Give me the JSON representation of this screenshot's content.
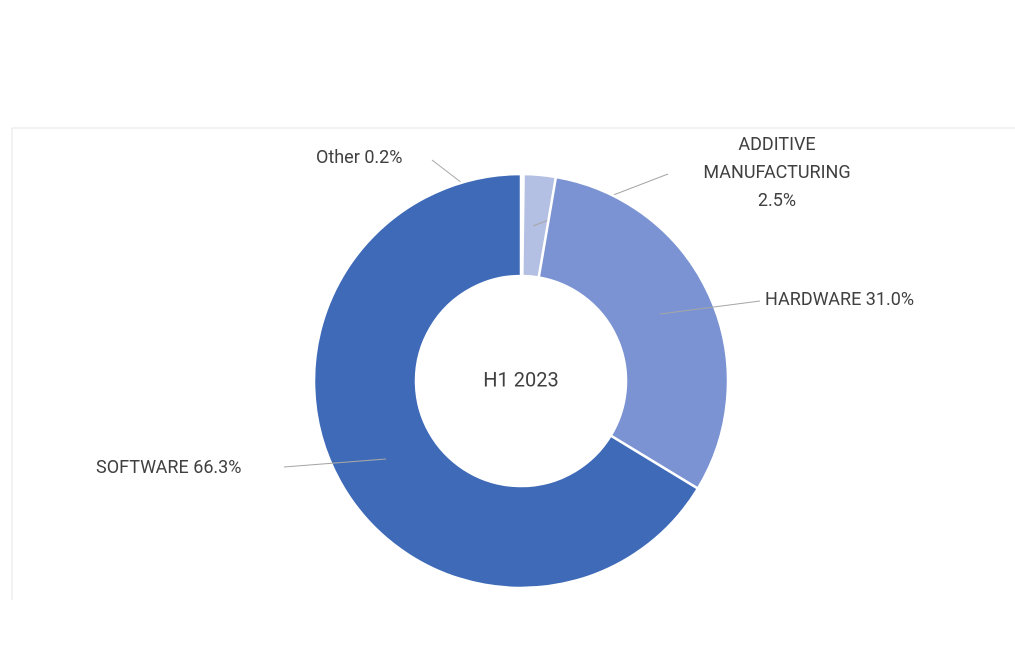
{
  "chart_data": {
    "type": "donut",
    "center_label": "H1 2023",
    "categories": [
      "Other",
      "ADDITIVE MANUFACTURING",
      "HARDWARE",
      "SOFTWARE"
    ],
    "values": [
      0.2,
      2.5,
      31.0,
      66.3
    ],
    "value_labels": [
      "0.2%",
      "2.5%",
      "31.0%",
      "66.3%"
    ],
    "colors": [
      "#c9d1ea",
      "#b3bfe3",
      "#7b93d2",
      "#3e6ab8"
    ]
  }
}
